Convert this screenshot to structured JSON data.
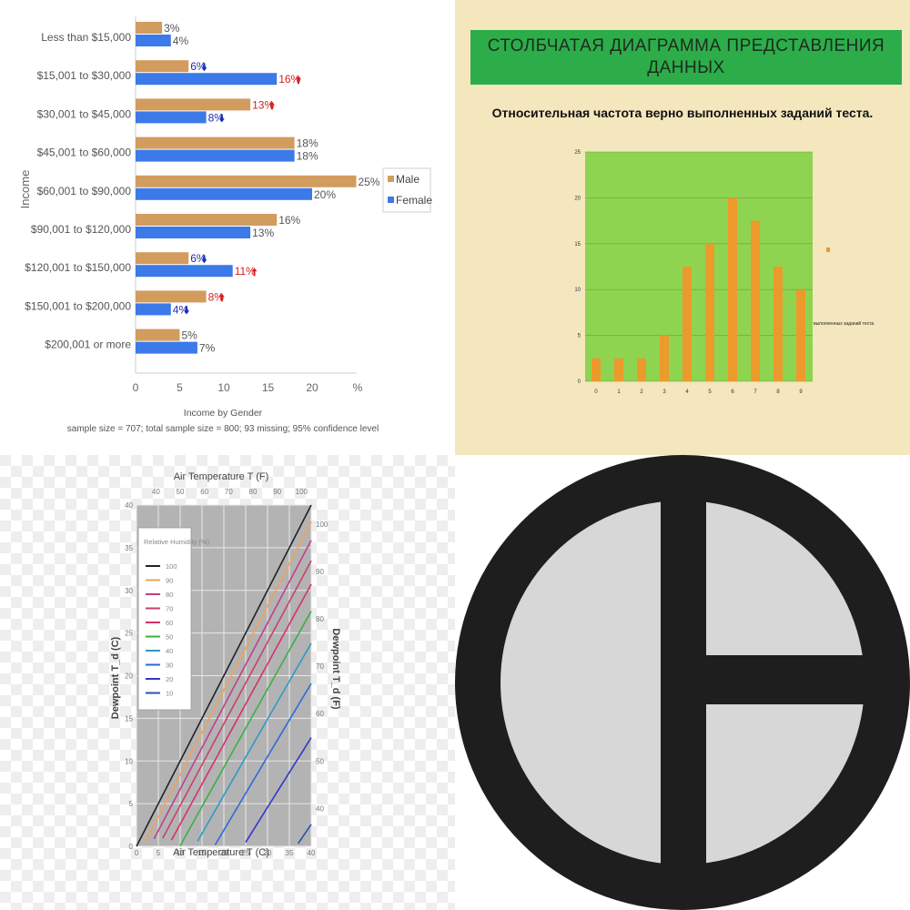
{
  "panels": {
    "income": {
      "chart_data": {
        "type": "bar",
        "orientation": "horizontal",
        "categories": [
          "Less than $15,000",
          "$15,001 to $30,000",
          "$30,001 to $45,000",
          "$45,001 to $60,000",
          "$60,001 to $90,000",
          "$90,001 to $120,000",
          "$120,001 to $150,000",
          "$150,001 to $200,000",
          "$200,001 or more"
        ],
        "series": [
          {
            "name": "Male",
            "color": "#d29c5e",
            "values": [
              3,
              6,
              13,
              18,
              25,
              16,
              6,
              8,
              5
            ]
          },
          {
            "name": "Female",
            "color": "#3b7ae8",
            "values": [
              4,
              16,
              8,
              18,
              20,
              13,
              11,
              4,
              7
            ]
          }
        ],
        "value_labels": {
          "Male": [
            "3%",
            "6%",
            "13%",
            "18%",
            "25%",
            "16%",
            "6%",
            "8%",
            "5%"
          ],
          "Female": [
            "4%",
            "16%",
            "8%",
            "18%",
            "20%",
            "13%",
            "11%",
            "4%",
            "7%"
          ]
        },
        "arrows": {
          "Male": [
            "",
            "down",
            "up",
            "",
            "",
            "",
            "down",
            "up",
            ""
          ],
          "Female": [
            "",
            "up",
            "down",
            "",
            "",
            "",
            "up",
            "down",
            ""
          ]
        },
        "label_colors": {
          "up": "#d62020",
          "down": "#1c2fb0",
          "none": "#555555"
        },
        "xlim": [
          0,
          25
        ],
        "xticks": [
          0,
          5,
          10,
          15,
          20
        ],
        "xunit": "%",
        "ylabel": "Income",
        "title": "Income by Gender",
        "subtitle": "sample size = 707; total sample size = 800; 93 missing; 95% confidence level",
        "legend_position": "right"
      }
    },
    "russian": {
      "banner_line1": "СТОЛБЧАТАЯ  ДИАГРАММА ПРЕДСТАВЛЕНИЯ",
      "banner_line2": "ДАННЫХ",
      "subtitle": "Относительная частота верно выполненных заданий теста.",
      "side_note": "выполненных заданий теста",
      "chart_data": {
        "type": "bar",
        "categories": [
          "0",
          "1",
          "2",
          "3",
          "4",
          "5",
          "6",
          "7",
          "8",
          "9"
        ],
        "values": [
          2.5,
          2.5,
          2.5,
          5,
          12.5,
          15,
          20,
          17.5,
          12.5,
          10
        ],
        "ylim": [
          0,
          25
        ],
        "yticks": [
          0,
          5,
          10,
          15,
          20,
          25
        ],
        "bar_color": "#ec9a2c",
        "plot_background": "#8fd451",
        "grid": true
      }
    },
    "dewpoint": {
      "chart_data": {
        "type": "line",
        "top_axis_label": "Air Temperature T (F)",
        "top_ticks": [
          "40",
          "50",
          "60",
          "70",
          "80",
          "90",
          "100"
        ],
        "bottom_axis_label": "Air Temperature T (C)",
        "bottom_ticks": [
          "0",
          "5",
          "10",
          "15",
          "20",
          "25",
          "30",
          "35",
          "40"
        ],
        "left_axis_label": "Dewpoint T_d (C)",
        "left_ticks": [
          "0",
          "5",
          "10",
          "15",
          "20",
          "25",
          "30",
          "35",
          "40"
        ],
        "right_axis_label": "Dewpoint T_d (F)",
        "right_ticks": [
          "40",
          "50",
          "60",
          "70",
          "80",
          "90",
          "100"
        ],
        "xlim": [
          0,
          40
        ],
        "ylim": [
          0,
          40
        ],
        "legend_title": "Relative Humidity (%)",
        "legend_position": "top-left",
        "series": [
          {
            "name": "100",
            "rh": 100,
            "color": "#222222"
          },
          {
            "name": "90",
            "rh": 90,
            "color": "#f0a25a"
          },
          {
            "name": "80",
            "rh": 80,
            "color": "#c0408a"
          },
          {
            "name": "70",
            "rh": 70,
            "color": "#c84070"
          },
          {
            "name": "60",
            "rh": 60,
            "color": "#d6306a"
          },
          {
            "name": "50",
            "rh": 50,
            "color": "#3cb043"
          },
          {
            "name": "40",
            "rh": 40,
            "color": "#2d9ac8"
          },
          {
            "name": "30",
            "rh": 30,
            "color": "#2f6ad8"
          },
          {
            "name": "20",
            "rh": 20,
            "color": "#3138c8"
          },
          {
            "name": "10",
            "rh": 10,
            "color": "#2e4fb0"
          }
        ],
        "grid": true,
        "plot_background": "#b3b3b3"
      }
    },
    "symbol": {
      "ring_color": "#1e1e1e",
      "fill_color": "#d7d7d7",
      "icon": "circle-with-vertical-bar-and-half-bar-icon"
    }
  }
}
